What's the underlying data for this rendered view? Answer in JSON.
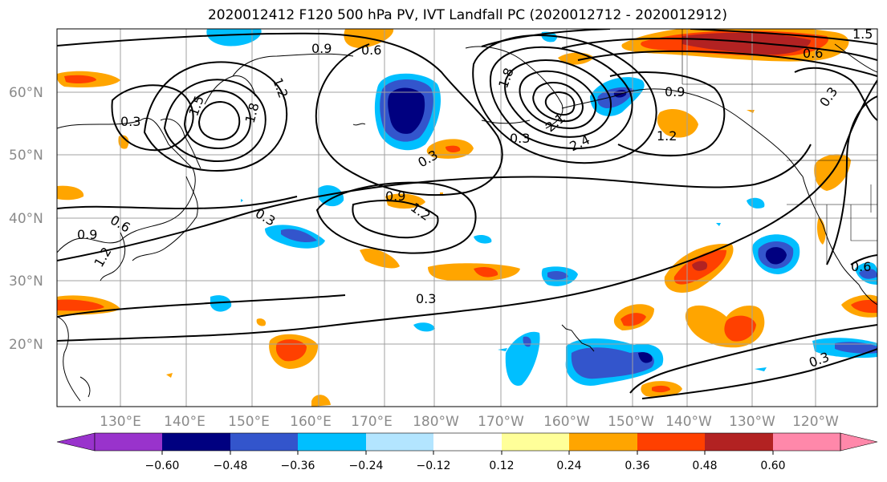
{
  "title": "2020012412 F120 500 hPa PV, IVT Landfall PC (2020012712 - 2020012912)",
  "lat_labels": [
    "60°N",
    "50°N",
    "40°N",
    "30°N",
    "20°N"
  ],
  "lon_labels": [
    "130°E",
    "140°E",
    "150°E",
    "160°E",
    "170°E",
    "180°W",
    "170°W",
    "160°W",
    "150°W",
    "140°W",
    "130°W",
    "120°W"
  ],
  "colorbar": {
    "colors": [
      "#9933cc",
      "#000080",
      "#3355cc",
      "#00bfff",
      "#b3e5ff",
      "#ffffff",
      "#ffff99",
      "#ffa500",
      "#ff4000",
      "#b22222",
      "#ff88aa"
    ],
    "labels": [
      "−0.60",
      "−0.48",
      "−0.36",
      "−0.24",
      "−0.12",
      "0.12",
      "0.24",
      "0.36",
      "0.48",
      "0.60"
    ]
  },
  "contour_labels": [
    "0.9",
    "0.6",
    "1.2",
    "1.5",
    "1.8",
    "0.3",
    "0.3",
    "1.8",
    "2.1",
    "2.4",
    "0.9",
    "1.2",
    "0.9",
    "1.2",
    "0.3",
    "0.6",
    "0.9",
    "1.2",
    "0.3",
    "0.3",
    "0.6",
    "0.3",
    "0.3",
    "0.6",
    "1.5"
  ],
  "colors": {
    "contour": "#000000",
    "grid": "#a0a0a0",
    "coast": "#000000"
  }
}
